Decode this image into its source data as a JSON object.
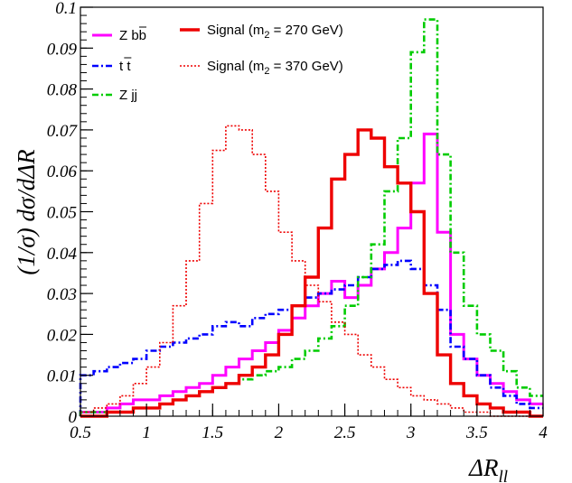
{
  "chart_data": {
    "type": "line",
    "title": "",
    "xlabel": "ΔR",
    "xlabel_sub": "ll",
    "ylabel": "(1/σ) dσ/dΔR",
    "xlim": [
      0.5,
      4.0
    ],
    "ylim": [
      0,
      0.1
    ],
    "grid": false,
    "legend_position": "top-left",
    "xticks": [
      0.5,
      1,
      1.5,
      2,
      2.5,
      3,
      3.5,
      4
    ],
    "xtick_labels": [
      "0.5",
      "1",
      "1.5",
      "2",
      "2.5",
      "3",
      "3.5",
      "4"
    ],
    "yticks": [
      0,
      0.01,
      0.02,
      0.03,
      0.04,
      0.05,
      0.06,
      0.07,
      0.08,
      0.09,
      0.1
    ],
    "ytick_labels": [
      "0",
      "0.01",
      "0.02",
      "0.03",
      "0.04",
      "0.05",
      "0.06",
      "0.07",
      "0.08",
      "0.09",
      "0.1"
    ],
    "bin_width": 0.1,
    "bin_starts": [
      0.5,
      0.6,
      0.7,
      0.8,
      0.9,
      1.0,
      1.1,
      1.2,
      1.3,
      1.4,
      1.5,
      1.6,
      1.7,
      1.8,
      1.9,
      2.0,
      2.1,
      2.2,
      2.3,
      2.4,
      2.5,
      2.6,
      2.7,
      2.8,
      2.9,
      3.0,
      3.1,
      3.2,
      3.3,
      3.4,
      3.5,
      3.6,
      3.7,
      3.8,
      3.9
    ],
    "series": [
      {
        "name": "Z bb̄",
        "color": "#ff00ff",
        "style": "solid",
        "values": [
          0.001,
          0.001,
          0.002,
          0.003,
          0.004,
          0.004,
          0.005,
          0.006,
          0.007,
          0.008,
          0.01,
          0.012,
          0.014,
          0.016,
          0.018,
          0.021,
          0.024,
          0.027,
          0.03,
          0.033,
          0.029,
          0.032,
          0.036,
          0.04,
          0.046,
          0.057,
          0.069,
          0.045,
          0.02,
          0.014,
          0.01,
          0.008,
          0.006,
          0.004,
          0.003
        ]
      },
      {
        "name": "t t̄",
        "color": "#0000ff",
        "style": "dash-dot",
        "values": [
          0.01,
          0.011,
          0.012,
          0.013,
          0.014,
          0.016,
          0.017,
          0.018,
          0.019,
          0.02,
          0.022,
          0.023,
          0.022,
          0.024,
          0.025,
          0.026,
          0.027,
          0.029,
          0.03,
          0.031,
          0.032,
          0.034,
          0.036,
          0.037,
          0.038,
          0.036,
          0.032,
          0.026,
          0.017,
          0.014,
          0.01,
          0.007,
          0.005,
          0.003,
          0.002
        ]
      },
      {
        "name": "Z jj",
        "color": "#00cc00",
        "style": "dash-dot",
        "values": [
          0.001,
          0.001,
          0.001,
          0.001,
          0.002,
          0.002,
          0.003,
          0.004,
          0.005,
          0.006,
          0.007,
          0.008,
          0.009,
          0.01,
          0.011,
          0.012,
          0.014,
          0.016,
          0.019,
          0.022,
          0.027,
          0.034,
          0.042,
          0.055,
          0.068,
          0.089,
          0.097,
          0.064,
          0.04,
          0.027,
          0.02,
          0.016,
          0.011,
          0.007,
          0.005
        ]
      },
      {
        "name": "Signal (m2 = 270 GeV)",
        "color": "#ee0000",
        "style": "solid-thick",
        "values": [
          0.0,
          0.0,
          0.001,
          0.001,
          0.002,
          0.002,
          0.003,
          0.004,
          0.005,
          0.006,
          0.007,
          0.008,
          0.01,
          0.012,
          0.015,
          0.02,
          0.027,
          0.034,
          0.046,
          0.058,
          0.064,
          0.07,
          0.068,
          0.061,
          0.057,
          0.05,
          0.03,
          0.015,
          0.008,
          0.005,
          0.003,
          0.002,
          0.001,
          0.001,
          0.0
        ]
      },
      {
        "name": "Signal (m2 = 370 GeV)",
        "color": "#ee0000",
        "style": "dotted",
        "values": [
          0.001,
          0.002,
          0.003,
          0.005,
          0.008,
          0.012,
          0.018,
          0.027,
          0.038,
          0.052,
          0.065,
          0.071,
          0.07,
          0.064,
          0.055,
          0.045,
          0.038,
          0.032,
          0.028,
          0.023,
          0.02,
          0.015,
          0.012,
          0.009,
          0.007,
          0.005,
          0.004,
          0.003,
          0.002,
          0.001,
          0.001,
          0.0,
          0.0,
          0.0,
          0.0
        ]
      }
    ],
    "legend": [
      {
        "series": 0,
        "text": "Z bb",
        "overline_part": "b"
      },
      {
        "series": 1,
        "text": "t t",
        "overline_part": "t"
      },
      {
        "series": 2,
        "text": "Z jj",
        "overline_part": ""
      },
      {
        "series": 3,
        "text_pre": "Signal (m",
        "text_sub": "2",
        "text_post": " = 270 GeV)"
      },
      {
        "series": 4,
        "text_pre": "Signal (m",
        "text_sub": "2",
        "text_post": " = 370 GeV)"
      }
    ]
  }
}
